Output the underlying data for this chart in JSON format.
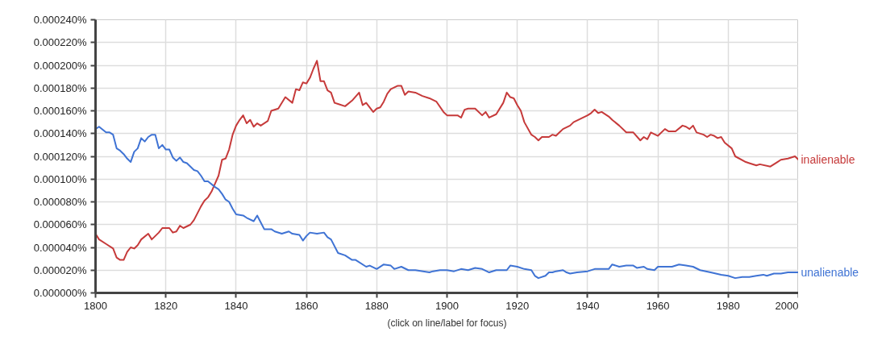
{
  "chart_data": {
    "type": "line",
    "annotations": [
      "(click on line/label for focus)"
    ],
    "xlim": [
      1800,
      2000
    ],
    "xticks": [
      1800,
      1820,
      1840,
      1860,
      1880,
      1900,
      1920,
      1940,
      1960,
      1980,
      2000
    ],
    "ylim": [
      0,
      0.00024
    ],
    "yticks": [
      {
        "value": 0,
        "label": "0.000000%"
      },
      {
        "value": 2e-05,
        "label": "0.000020%"
      },
      {
        "value": 4e-05,
        "label": "0.000040%"
      },
      {
        "value": 6e-05,
        "label": "0.000060%"
      },
      {
        "value": 8e-05,
        "label": "0.000080%"
      },
      {
        "value": 0.0001,
        "label": "0.000100%"
      },
      {
        "value": 0.00012,
        "label": "0.000120%"
      },
      {
        "value": 0.00014,
        "label": "0.000140%"
      },
      {
        "value": 0.00016,
        "label": "0.000160%"
      },
      {
        "value": 0.00018,
        "label": "0.000180%"
      },
      {
        "value": 0.0002,
        "label": "0.000200%"
      },
      {
        "value": 0.00022,
        "label": "0.000220%"
      },
      {
        "value": 0.00024,
        "label": "0.000240%"
      }
    ],
    "grid": true,
    "marker": "none",
    "line_style": "solid",
    "series": [
      {
        "name": "inalienable",
        "color": "#c63a3a",
        "x": [
          1800,
          1801,
          1803,
          1805,
          1806,
          1807,
          1808,
          1809,
          1810,
          1811,
          1812,
          1813,
          1815,
          1816,
          1818,
          1819,
          1821,
          1822,
          1823,
          1824,
          1825,
          1827,
          1828,
          1830,
          1831,
          1832,
          1833,
          1834,
          1835,
          1836,
          1837,
          1838,
          1839,
          1840,
          1841,
          1842,
          1843,
          1844,
          1845,
          1846,
          1847,
          1849,
          1850,
          1852,
          1854,
          1856,
          1857,
          1858,
          1859,
          1860,
          1861,
          1862,
          1863,
          1864,
          1865,
          1866,
          1867,
          1868,
          1869,
          1871,
          1873,
          1875,
          1876,
          1877,
          1879,
          1880,
          1881,
          1882,
          1883,
          1884,
          1886,
          1887,
          1888,
          1889,
          1891,
          1893,
          1895,
          1897,
          1899,
          1900,
          1903,
          1904,
          1905,
          1906,
          1908,
          1910,
          1911,
          1912,
          1914,
          1916,
          1917,
          1918,
          1919,
          1920,
          1921,
          1922,
          1924,
          1925,
          1926,
          1927,
          1929,
          1930,
          1931,
          1932,
          1933,
          1935,
          1936,
          1938,
          1940,
          1941,
          1942,
          1943,
          1944,
          1946,
          1947,
          1949,
          1951,
          1953,
          1955,
          1956,
          1957,
          1958,
          1960,
          1962,
          1963,
          1965,
          1967,
          1968,
          1969,
          1970,
          1971,
          1973,
          1974,
          1975,
          1976,
          1977,
          1978,
          1979,
          1981,
          1982,
          1985,
          1986,
          1988,
          1989,
          1992,
          1994,
          1995,
          1997,
          1999,
          2000
        ],
        "values": [
          5.2e-05,
          4.7e-05,
          4.3e-05,
          3.9e-05,
          3.1e-05,
          2.9e-05,
          2.9e-05,
          3.6e-05,
          4e-05,
          3.9e-05,
          4.2e-05,
          4.7e-05,
          5.2e-05,
          4.7e-05,
          5.3e-05,
          5.7e-05,
          5.7e-05,
          5.3e-05,
          5.4e-05,
          5.9e-05,
          5.7e-05,
          6e-05,
          6.4e-05,
          7.6e-05,
          8.1e-05,
          8.4e-05,
          8.9e-05,
          9.6e-05,
          0.000103,
          0.000117,
          0.000118,
          0.000126,
          0.000139,
          0.000147,
          0.000152,
          0.000156,
          0.000149,
          0.000152,
          0.000146,
          0.000149,
          0.000147,
          0.000151,
          0.00016,
          0.000162,
          0.000172,
          0.000167,
          0.000179,
          0.000178,
          0.000185,
          0.000184,
          0.000189,
          0.000197,
          0.000204,
          0.000186,
          0.000186,
          0.000178,
          0.000176,
          0.000167,
          0.000166,
          0.000164,
          0.000169,
          0.000176,
          0.000165,
          0.000167,
          0.000159,
          0.000162,
          0.000163,
          0.000168,
          0.000175,
          0.000179,
          0.000182,
          0.000182,
          0.000174,
          0.000177,
          0.000176,
          0.000173,
          0.000171,
          0.000168,
          0.000159,
          0.000156,
          0.000156,
          0.000154,
          0.000161,
          0.000162,
          0.000162,
          0.000156,
          0.000159,
          0.000154,
          0.000157,
          0.000167,
          0.000176,
          0.000172,
          0.000171,
          0.000165,
          0.00016,
          0.00015,
          0.000139,
          0.000137,
          0.000134,
          0.000137,
          0.000137,
          0.000139,
          0.000138,
          0.000141,
          0.000144,
          0.000147,
          0.00015,
          0.000153,
          0.000156,
          0.000158,
          0.000161,
          0.000158,
          0.000159,
          0.000155,
          0.000152,
          0.000147,
          0.000141,
          0.000141,
          0.000134,
          0.000137,
          0.000135,
          0.000141,
          0.000138,
          0.000144,
          0.000142,
          0.000142,
          0.000147,
          0.000146,
          0.000144,
          0.000147,
          0.000141,
          0.000139,
          0.000137,
          0.000139,
          0.000138,
          0.000136,
          0.000137,
          0.000132,
          0.000127,
          0.00012,
          0.000115,
          0.000114,
          0.000112,
          0.000113,
          0.000111,
          0.000115,
          0.000117,
          0.000118,
          0.00012,
          0.000117
        ]
      },
      {
        "name": "unalienable",
        "color": "#3f73d4",
        "x": [
          1800,
          1801,
          1803,
          1804,
          1805,
          1806,
          1807,
          1808,
          1809,
          1810,
          1811,
          1812,
          1813,
          1814,
          1815,
          1816,
          1817,
          1818,
          1819,
          1820,
          1821,
          1822,
          1823,
          1824,
          1825,
          1826,
          1827,
          1828,
          1829,
          1830,
          1831,
          1832,
          1834,
          1835,
          1836,
          1837,
          1838,
          1839,
          1840,
          1842,
          1843,
          1845,
          1846,
          1847,
          1848,
          1850,
          1851,
          1853,
          1855,
          1856,
          1858,
          1859,
          1860,
          1861,
          1863,
          1865,
          1866,
          1867,
          1869,
          1871,
          1873,
          1874,
          1877,
          1878,
          1880,
          1882,
          1884,
          1885,
          1887,
          1889,
          1891,
          1895,
          1896,
          1898,
          1900,
          1902,
          1904,
          1906,
          1908,
          1910,
          1912,
          1914,
          1917,
          1918,
          1920,
          1922,
          1924,
          1925,
          1926,
          1928,
          1929,
          1930,
          1931,
          1933,
          1934,
          1935,
          1937,
          1940,
          1942,
          1944,
          1946,
          1947,
          1949,
          1951,
          1953,
          1954,
          1956,
          1957,
          1959,
          1960,
          1964,
          1966,
          1968,
          1970,
          1972,
          1975,
          1978,
          1980,
          1982,
          1984,
          1986,
          1988,
          1990,
          1991,
          1993,
          1995,
          1997,
          1999,
          2000
        ],
        "values": [
          0.000144,
          0.000146,
          0.000141,
          0.000141,
          0.000139,
          0.000127,
          0.000125,
          0.000122,
          0.000118,
          0.000115,
          0.000124,
          0.000127,
          0.000136,
          0.000133,
          0.000137,
          0.000139,
          0.000139,
          0.000127,
          0.00013,
          0.000126,
          0.000126,
          0.000119,
          0.000116,
          0.000119,
          0.000115,
          0.000114,
          0.000111,
          0.000108,
          0.000107,
          0.000103,
          9.8e-05,
          9.8e-05,
          9.3e-05,
          9.1e-05,
          8.7e-05,
          8.2e-05,
          8e-05,
          7.4e-05,
          6.9e-05,
          6.8e-05,
          6.6e-05,
          6.3e-05,
          6.8e-05,
          6.2e-05,
          5.6e-05,
          5.6e-05,
          5.4e-05,
          5.2e-05,
          5.4e-05,
          5.2e-05,
          5.1e-05,
          4.6e-05,
          5e-05,
          5.3e-05,
          5.2e-05,
          5.3e-05,
          4.9e-05,
          4.7e-05,
          3.5e-05,
          3.3e-05,
          2.9e-05,
          2.9e-05,
          2.3e-05,
          2.4e-05,
          2.1e-05,
          2.5e-05,
          2.4e-05,
          2.1e-05,
          2.3e-05,
          2e-05,
          2e-05,
          1.8e-05,
          1.9e-05,
          2e-05,
          2e-05,
          1.9e-05,
          2.1e-05,
          2e-05,
          2.2e-05,
          2.1e-05,
          1.8e-05,
          2e-05,
          2e-05,
          2.4e-05,
          2.3e-05,
          2.1e-05,
          2e-05,
          1.5e-05,
          1.3e-05,
          1.5e-05,
          1.8e-05,
          1.8e-05,
          1.9e-05,
          2e-05,
          1.8e-05,
          1.7e-05,
          1.8e-05,
          1.9e-05,
          2.1e-05,
          2.1e-05,
          2.1e-05,
          2.5e-05,
          2.3e-05,
          2.4e-05,
          2.4e-05,
          2.2e-05,
          2.3e-05,
          2.1e-05,
          2e-05,
          2.3e-05,
          2.3e-05,
          2.5e-05,
          2.4e-05,
          2.3e-05,
          2e-05,
          1.8e-05,
          1.6e-05,
          1.5e-05,
          1.3e-05,
          1.4e-05,
          1.4e-05,
          1.5e-05,
          1.6e-05,
          1.5e-05,
          1.7e-05,
          1.7e-05,
          1.8e-05,
          1.8e-05,
          1.8e-05
        ]
      }
    ]
  }
}
